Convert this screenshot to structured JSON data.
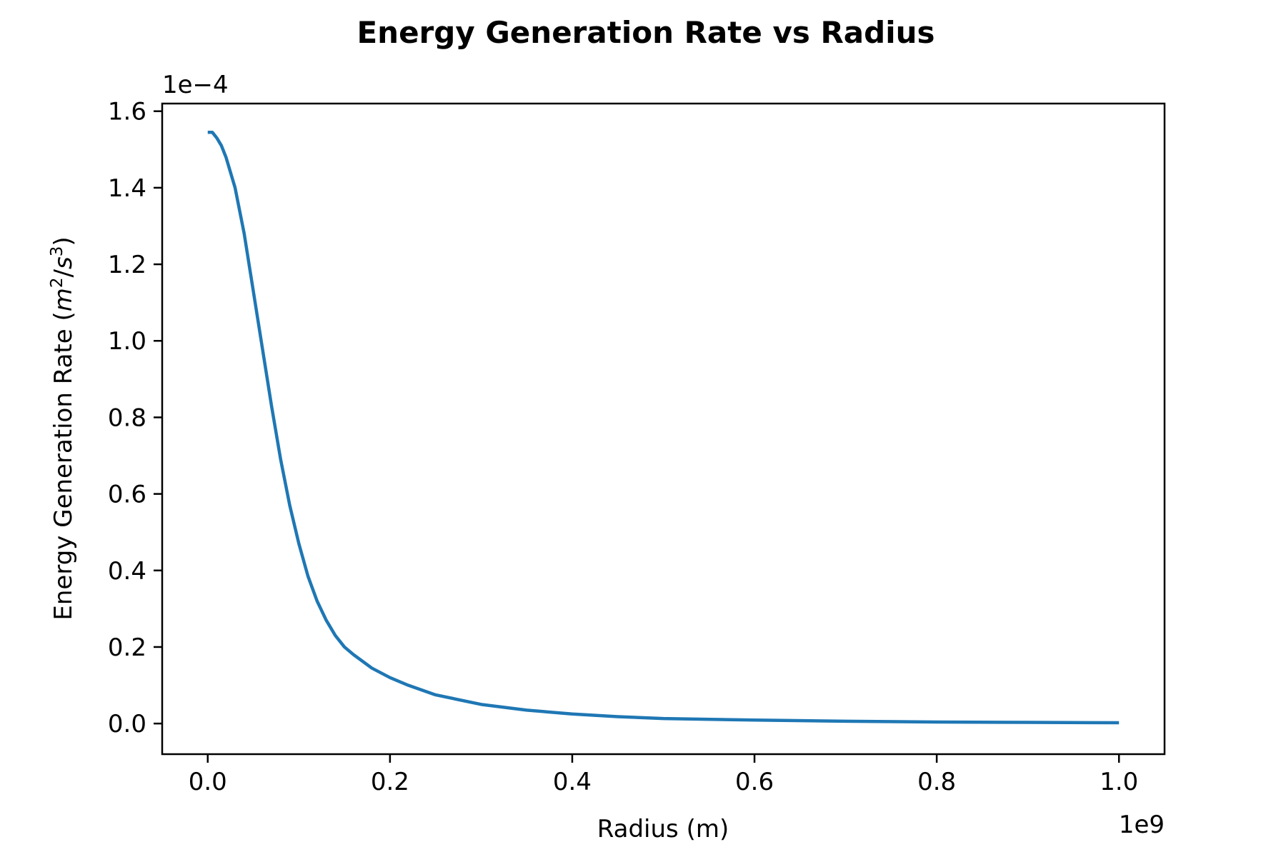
{
  "chart_data": {
    "type": "line",
    "title": "Energy Generation Rate vs Radius",
    "xlabel": "Radius (m)",
    "ylabel_prefix": "Energy Generation Rate (",
    "ylabel_m": "m",
    "ylabel_exp2": "2",
    "ylabel_slash": "/",
    "ylabel_s": "s",
    "ylabel_exp3": "3",
    "ylabel_suffix": ")",
    "x_offset_text": "1e9",
    "y_offset_text": "1e−4",
    "xlim": [
      -0.05,
      1.05
    ],
    "ylim": [
      -0.08,
      1.62
    ],
    "x_scale": 1000000000.0,
    "y_scale": 0.0001,
    "x_ticks": [
      0.0,
      0.2,
      0.4,
      0.6,
      0.8,
      1.0
    ],
    "x_tick_labels": [
      "0.0",
      "0.2",
      "0.4",
      "0.6",
      "0.8",
      "1.0"
    ],
    "y_ticks": [
      0.0,
      0.2,
      0.4,
      0.6,
      0.8,
      1.0,
      1.2,
      1.4,
      1.6
    ],
    "y_tick_labels": [
      "0.0",
      "0.2",
      "0.4",
      "0.6",
      "0.8",
      "1.0",
      "1.2",
      "1.4",
      "1.6"
    ],
    "grid": false,
    "series": [
      {
        "color": "#1f77b4",
        "x": [
          0.0,
          0.005,
          0.01,
          0.015,
          0.02,
          0.03,
          0.04,
          0.05,
          0.06,
          0.07,
          0.08,
          0.09,
          0.1,
          0.11,
          0.12,
          0.13,
          0.14,
          0.15,
          0.16,
          0.18,
          0.2,
          0.22,
          0.25,
          0.3,
          0.35,
          0.4,
          0.45,
          0.5,
          0.6,
          0.7,
          0.8,
          0.9,
          1.0
        ],
        "y": [
          1.545,
          1.545,
          1.53,
          1.51,
          1.48,
          1.4,
          1.28,
          1.13,
          0.98,
          0.83,
          0.69,
          0.57,
          0.47,
          0.385,
          0.32,
          0.27,
          0.23,
          0.2,
          0.18,
          0.145,
          0.12,
          0.1,
          0.075,
          0.05,
          0.035,
          0.025,
          0.018,
          0.013,
          0.009,
          0.006,
          0.004,
          0.003,
          0.002
        ]
      }
    ]
  }
}
